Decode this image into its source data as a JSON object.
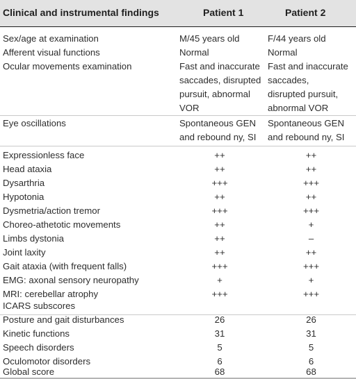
{
  "header": {
    "finding": "Clinical and instrumental findings",
    "patient1": "Patient 1",
    "patient2": "Patient 2"
  },
  "rows": [
    {
      "finding": "Sex/age at examination",
      "p1": "M/45 years old",
      "p2": "F/44 years old"
    },
    {
      "finding": "Afferent visual functions",
      "p1": "Normal",
      "p2": "Normal"
    },
    {
      "finding": "Ocular movements examination",
      "p1": "Fast and inaccurate\nsaccades, disrupted\npursuit, abnormal\nVOR",
      "p2": "Fast and inaccurate\nsaccades,\ndisrupted pursuit,\nabnormal VOR"
    },
    {
      "finding": "Eye oscillations",
      "p1": "Spontaneous GEN\nand rebound ny, SI",
      "p2": "Spontaneous GEN\nand rebound ny, SI"
    },
    {
      "finding": "Expressionless face",
      "p1": "++",
      "p2": "++"
    },
    {
      "finding": "Head ataxia",
      "p1": "++",
      "p2": "++"
    },
    {
      "finding": "Dysarthria",
      "p1": "+++",
      "p2": "+++"
    },
    {
      "finding": "Hypotonia",
      "p1": "++",
      "p2": "++"
    },
    {
      "finding": "Dysmetria/action tremor",
      "p1": "+++",
      "p2": "+++"
    },
    {
      "finding": "Choreo-athetotic movements",
      "p1": "++",
      "p2": "+"
    },
    {
      "finding": "Limbs dystonia",
      "p1": "++",
      "p2": "–"
    },
    {
      "finding": "Joint laxity",
      "p1": "++",
      "p2": "++"
    },
    {
      "finding": "Gait ataxia (with frequent falls)",
      "p1": "+++",
      "p2": "+++"
    },
    {
      "finding": "EMG: axonal sensory neuropathy",
      "p1": "+",
      "p2": "+"
    },
    {
      "finding": "MRI: cerebellar atrophy",
      "p1": "+++",
      "p2": "+++"
    },
    {
      "finding": "ICARS subscores",
      "p1": "",
      "p2": ""
    },
    {
      "finding": "Posture and gait disturbances",
      "p1": "26",
      "p2": "26"
    },
    {
      "finding": "Kinetic functions",
      "p1": "31",
      "p2": "31"
    },
    {
      "finding": "Speech disorders",
      "p1": "5",
      "p2": "5"
    },
    {
      "finding": "Oculomotor disorders",
      "p1": "6",
      "p2": "6"
    },
    {
      "finding": "Global score",
      "p1": "68",
      "p2": "68"
    }
  ]
}
